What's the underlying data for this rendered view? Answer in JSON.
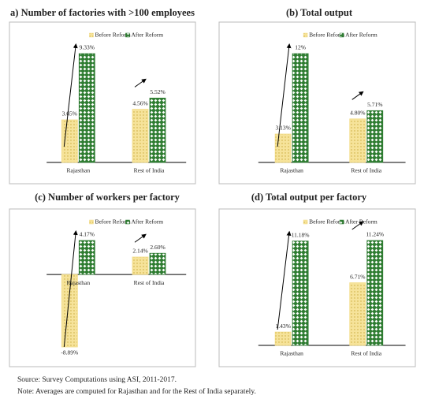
{
  "chart_data": [
    {
      "type": "bar",
      "title": "a) Number of factories with >100 employees",
      "categories": [
        "Rajasthan",
        "Rest of India"
      ],
      "series": [
        {
          "name": "Before Reform",
          "color": "#f3dc86",
          "values": [
            3.65,
            4.56
          ],
          "value_labels": [
            "3.65%",
            "4.56%"
          ]
        },
        {
          "name": "After Reform",
          "color": "#2f7d32",
          "values": [
            9.33,
            5.52
          ],
          "value_labels": [
            "9.33%",
            "5.52%"
          ]
        }
      ]
    },
    {
      "type": "bar",
      "title": "(b) Total output",
      "categories": [
        "Rajasthan",
        "Rest of India"
      ],
      "series": [
        {
          "name": "Before Reform",
          "color": "#f3dc86",
          "values": [
            3.13,
            4.8
          ],
          "value_labels": [
            "3.13%",
            "4.80%"
          ]
        },
        {
          "name": "After Reform",
          "color": "#2f7d32",
          "values": [
            12,
            5.71
          ],
          "value_labels": [
            "12%",
            "5.71%"
          ]
        }
      ]
    },
    {
      "type": "bar",
      "title": "(c) Number of workers per factory",
      "categories": [
        "Rajasthan",
        "Rest of India"
      ],
      "series": [
        {
          "name": "Before Reform",
          "color": "#f3dc86",
          "values": [
            -8.89,
            2.14
          ],
          "value_labels": [
            "-8.89%",
            "2.14%"
          ]
        },
        {
          "name": "After Reform",
          "color": "#2f7d32",
          "values": [
            4.17,
            2.6
          ],
          "value_labels": [
            "4.17%",
            "2.60%"
          ]
        }
      ]
    },
    {
      "type": "bar",
      "title": "(d) Total output per factory",
      "categories": [
        "Rajasthan",
        "Rest of India"
      ],
      "series": [
        {
          "name": "Before Reform",
          "color": "#f3dc86",
          "values": [
            1.43,
            6.71
          ],
          "value_labels": [
            "1.43%",
            "6.71%"
          ]
        },
        {
          "name": "After Reform",
          "color": "#2f7d32",
          "values": [
            11.18,
            11.24
          ],
          "value_labels": [
            "11.18%",
            "11.24%"
          ]
        }
      ]
    }
  ],
  "source": "Source:  Survey Computations using ASI, 2011-2017.",
  "note": "Note: Averages are computed for Rajasthan and for the Rest of India separately."
}
